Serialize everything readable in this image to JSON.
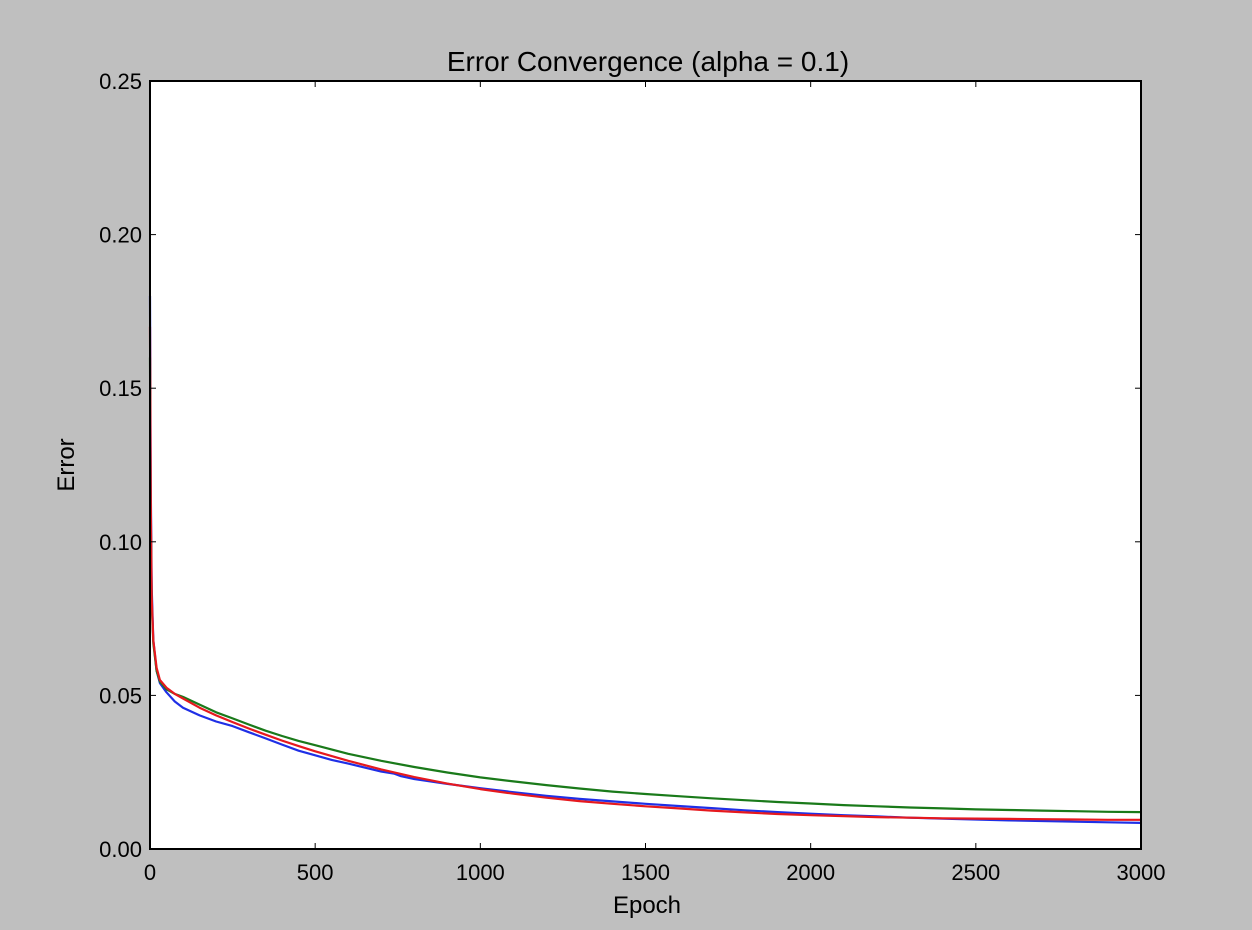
{
  "chart_data": {
    "type": "line",
    "title": "Error Convergence (alpha = 0.1)",
    "xlabel": "Epoch",
    "ylabel": "Error",
    "xlim": [
      0,
      3000
    ],
    "ylim": [
      0,
      0.25
    ],
    "xticks": [
      0,
      500,
      1000,
      1500,
      2000,
      2500,
      3000
    ],
    "xtick_labels": [
      "0",
      "500",
      "1000",
      "1500",
      "2000",
      "2500",
      "3000"
    ],
    "yticks": [
      0.0,
      0.05,
      0.1,
      0.15,
      0.2,
      0.25
    ],
    "ytick_labels": [
      "0.00",
      "0.05",
      "0.10",
      "0.15",
      "0.20",
      "0.25"
    ],
    "grid": false,
    "legend": "none",
    "background_color": "#bfbfbf",
    "plot_background_color": "#ffffff",
    "series": [
      {
        "color": "#1f2fe6",
        "x": [
          0,
          2,
          5,
          10,
          20,
          30,
          50,
          75,
          100,
          150,
          200,
          250,
          300,
          350,
          400,
          450,
          500,
          550,
          600,
          650,
          700,
          740,
          760,
          800,
          900,
          1000,
          1100,
          1200,
          1300,
          1400,
          1500,
          1600,
          1700,
          1800,
          1900,
          2000,
          2100,
          2200,
          2300,
          2400,
          2500,
          2600,
          2700,
          2800,
          2900,
          3000
        ],
        "y": [
          0.18,
          0.12,
          0.085,
          0.068,
          0.058,
          0.054,
          0.051,
          0.048,
          0.046,
          0.0435,
          0.0415,
          0.04,
          0.038,
          0.036,
          0.034,
          0.032,
          0.0305,
          0.029,
          0.0278,
          0.0265,
          0.0252,
          0.0245,
          0.0237,
          0.0228,
          0.0212,
          0.0198,
          0.0185,
          0.0173,
          0.0163,
          0.0155,
          0.0147,
          0.014,
          0.0133,
          0.0126,
          0.012,
          0.0115,
          0.011,
          0.0106,
          0.0102,
          0.0099,
          0.0096,
          0.0093,
          0.0091,
          0.0089,
          0.0087,
          0.0085
        ]
      },
      {
        "color": "#1a7a1a",
        "x": [
          0,
          2,
          5,
          10,
          20,
          30,
          50,
          75,
          100,
          150,
          200,
          250,
          300,
          350,
          400,
          450,
          500,
          600,
          700,
          800,
          900,
          1000,
          1100,
          1200,
          1300,
          1400,
          1500,
          1600,
          1700,
          1800,
          1900,
          2000,
          2100,
          2200,
          2300,
          2400,
          2500,
          2600,
          2700,
          2800,
          2900,
          3000
        ],
        "y": [
          0.16,
          0.11,
          0.08,
          0.067,
          0.058,
          0.0545,
          0.052,
          0.0505,
          0.0495,
          0.047,
          0.0445,
          0.0425,
          0.0405,
          0.0385,
          0.0368,
          0.0352,
          0.0338,
          0.031,
          0.0287,
          0.0267,
          0.0249,
          0.0233,
          0.022,
          0.0208,
          0.0197,
          0.0187,
          0.0179,
          0.0172,
          0.0165,
          0.0159,
          0.0153,
          0.0148,
          0.0143,
          0.0139,
          0.0135,
          0.0132,
          0.0129,
          0.0127,
          0.0125,
          0.0123,
          0.0121,
          0.012
        ]
      },
      {
        "color": "#e6191e",
        "x": [
          0,
          2,
          5,
          10,
          20,
          30,
          50,
          75,
          100,
          150,
          200,
          250,
          300,
          350,
          400,
          450,
          500,
          600,
          700,
          800,
          900,
          1000,
          1100,
          1200,
          1300,
          1400,
          1500,
          1600,
          1700,
          1800,
          1900,
          2000,
          2100,
          2200,
          2300,
          2400,
          2500,
          2600,
          2700,
          2800,
          2900,
          3000
        ],
        "y": [
          0.17,
          0.115,
          0.082,
          0.068,
          0.059,
          0.055,
          0.0525,
          0.0505,
          0.049,
          0.046,
          0.0435,
          0.0413,
          0.0392,
          0.0372,
          0.0353,
          0.0335,
          0.0318,
          0.0287,
          0.0259,
          0.0234,
          0.0213,
          0.0195,
          0.018,
          0.0167,
          0.0156,
          0.0147,
          0.0139,
          0.0132,
          0.0125,
          0.0119,
          0.0114,
          0.011,
          0.0107,
          0.0104,
          0.0102,
          0.01,
          0.0099,
          0.0098,
          0.0097,
          0.0096,
          0.0095,
          0.0095
        ]
      }
    ]
  }
}
